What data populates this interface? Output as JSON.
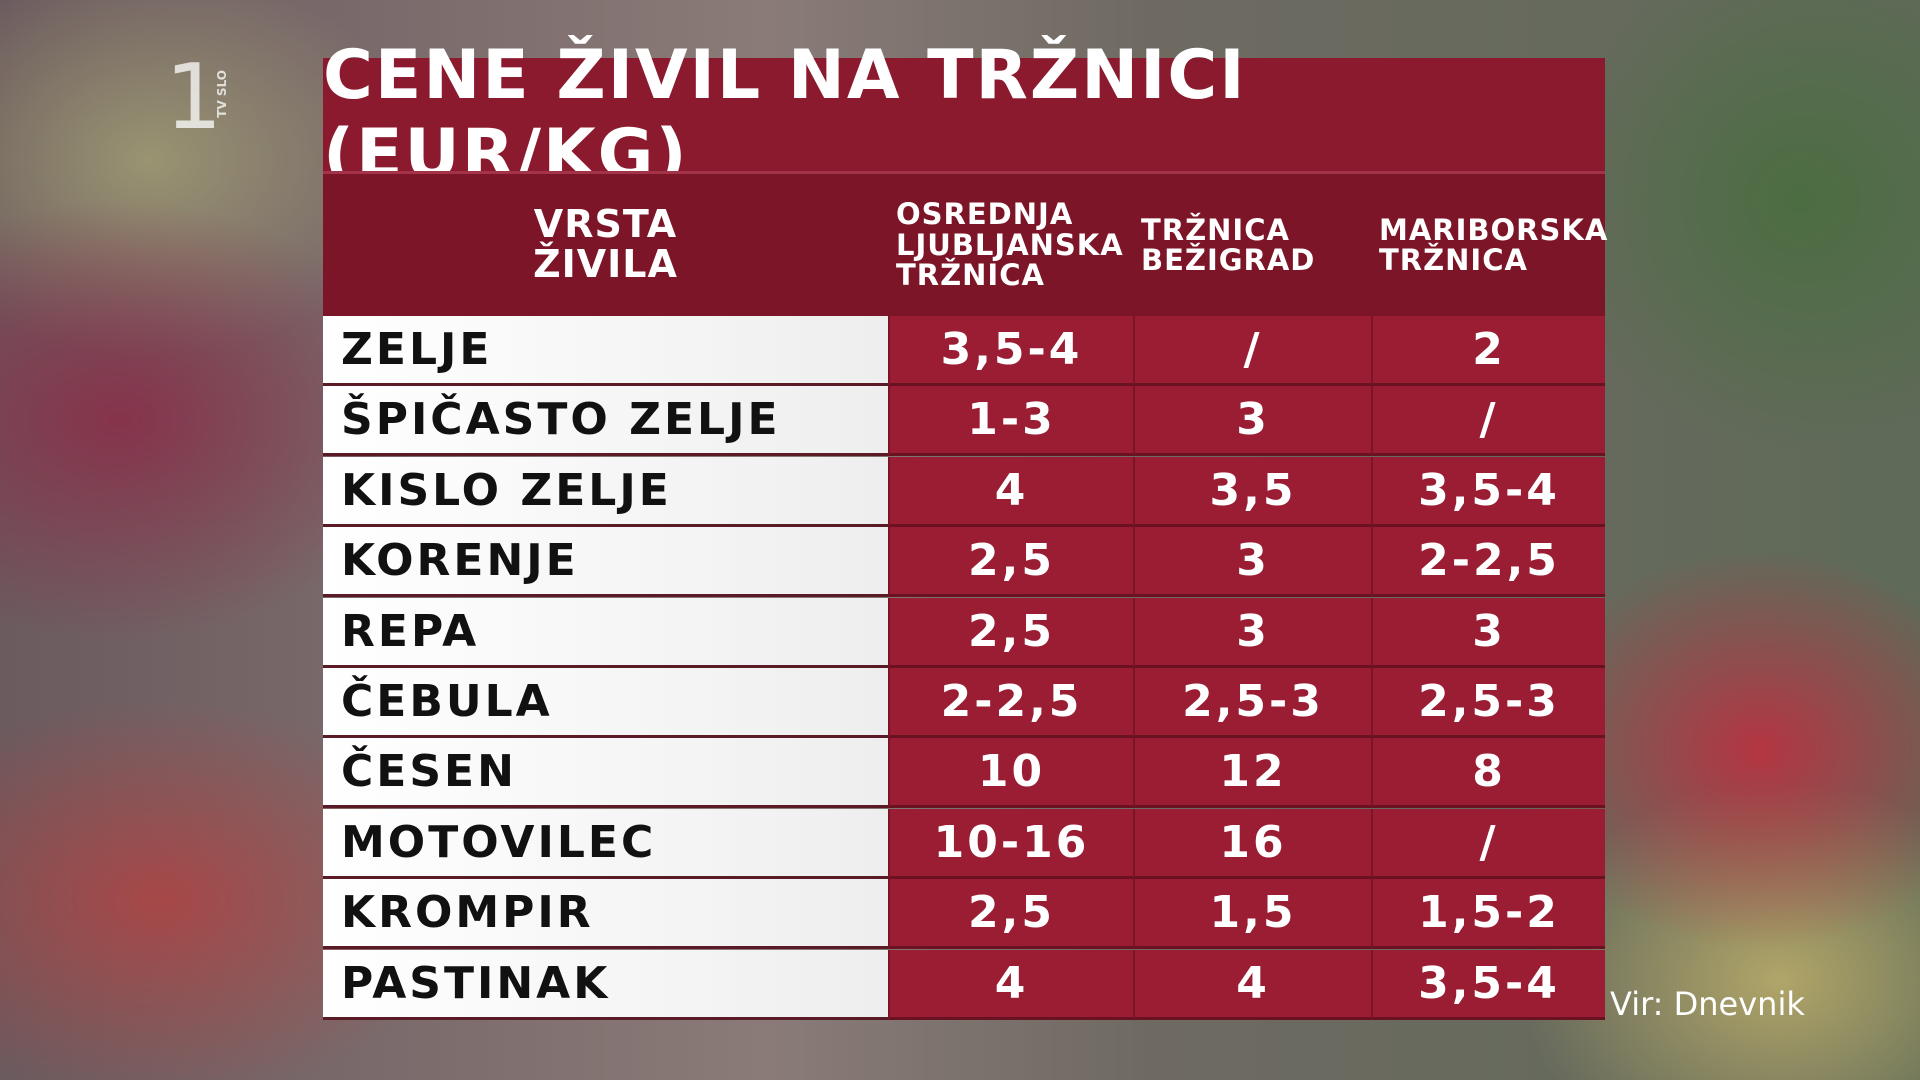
{
  "channel": {
    "logo": "1",
    "name": "TV SLO"
  },
  "title": "CENE ŽIVIL NA TRŽNICI (EUR/KG)",
  "table": {
    "header": [
      [
        "VRSTA",
        "ŽIVILA"
      ],
      [
        "OSREDNJA",
        "LJUBLJANSKA",
        "TRŽNICA"
      ],
      [
        "TRŽNICA",
        "BEŽIGRAD"
      ],
      [
        "MARIBORSKA",
        "TRŽNICA"
      ]
    ],
    "rows": [
      [
        "ZELJE",
        "3,5-4",
        "/",
        "2"
      ],
      [
        "ŠPIČASTO ZELJE",
        "1-3",
        "3",
        "/"
      ],
      [
        "KISLO ZELJE",
        "4",
        "3,5",
        "3,5-4"
      ],
      [
        "KORENJE",
        "2,5",
        "3",
        "2-2,5"
      ],
      [
        "REPA",
        "2,5",
        "3",
        "3"
      ],
      [
        "ČEBULA",
        "2-2,5",
        "2,5-3",
        "2,5-3"
      ],
      [
        "ČESEN",
        "10",
        "12",
        "8"
      ],
      [
        "MOTOVILEC",
        "10-16",
        "16",
        "/"
      ],
      [
        "KROMPIR",
        "2,5",
        "1,5",
        "1,5-2"
      ],
      [
        "PASTINAK",
        "4",
        "4",
        "3,5-4"
      ]
    ]
  },
  "source": "Vir: Dnevnik"
}
